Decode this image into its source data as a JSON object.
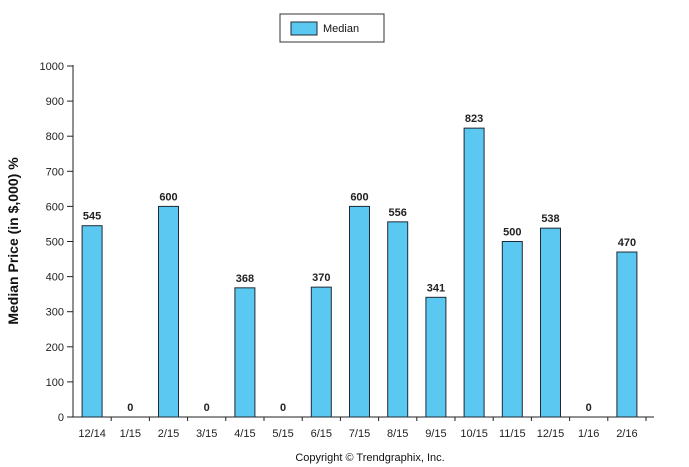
{
  "legend": {
    "label": "Median",
    "swatch_color": "#5AC8F0",
    "placement": "top-center"
  },
  "axes": {
    "ylabel": "Median Price (in $,000) %",
    "yticks": [
      "0",
      "100",
      "200",
      "300",
      "400",
      "500",
      "600",
      "700",
      "800",
      "900",
      "1000"
    ]
  },
  "footer": {
    "copyright": "Copyright © Trendgraphix, Inc."
  },
  "colors": {
    "bar_fill": "#5AC8F0",
    "bar_stroke": "#1F2A36",
    "axis": "#222222"
  },
  "chart_data": {
    "type": "bar",
    "categories": [
      "12/14",
      "1/15",
      "2/15",
      "3/15",
      "4/15",
      "5/15",
      "6/15",
      "7/15",
      "8/15",
      "9/15",
      "10/15",
      "11/15",
      "12/15",
      "1/16",
      "2/16"
    ],
    "series": [
      {
        "name": "Median",
        "values": [
          545,
          0,
          600,
          0,
          368,
          0,
          370,
          600,
          556,
          341,
          823,
          500,
          538,
          0,
          470
        ],
        "value_labels": [
          "545",
          "0",
          "600",
          "0",
          "368",
          "0",
          "370",
          "600",
          "556",
          "341",
          "823",
          "500",
          "538",
          "0",
          "470"
        ]
      }
    ],
    "ylabel": "Median Price (in $,000) %",
    "ylim": [
      0,
      1000
    ],
    "grid": false,
    "legend_position": "top-center"
  }
}
